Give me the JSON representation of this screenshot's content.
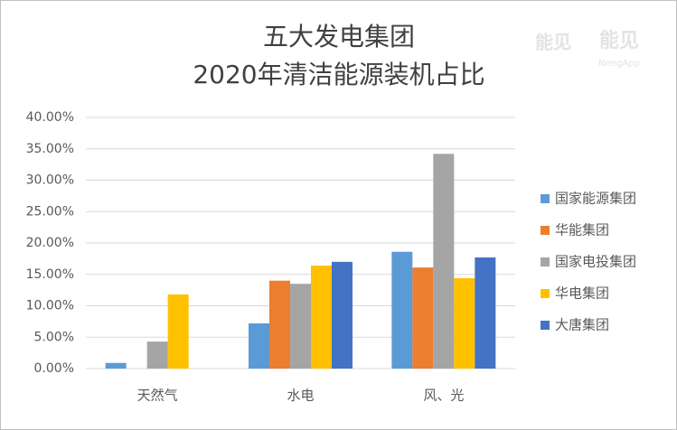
{
  "chart_data": {
    "type": "bar",
    "title": [
      "五大发电集团",
      "2020年清洁能源装机占比"
    ],
    "watermark": [
      "能见",
      "NengApp"
    ],
    "categories": [
      "天然气",
      "水电",
      "风、光"
    ],
    "series": [
      {
        "name": "国家能源集团",
        "color": "#5b9bd5",
        "values": [
          0.9,
          7.2,
          18.6
        ]
      },
      {
        "name": "华能集团",
        "color": "#ed7d31",
        "values": [
          null,
          14.0,
          16.1
        ]
      },
      {
        "name": "国家电投集团",
        "color": "#a5a5a5",
        "values": [
          4.3,
          13.5,
          34.2
        ]
      },
      {
        "name": "华电集团",
        "color": "#ffc000",
        "values": [
          11.8,
          16.4,
          14.4
        ]
      },
      {
        "name": "大唐集团",
        "color": "#4472c4",
        "values": [
          null,
          17.0,
          17.7
        ]
      }
    ],
    "ylim": [
      0,
      40
    ],
    "yticks": [
      {
        "value": 0,
        "label": "0.00%"
      },
      {
        "value": 5,
        "label": "5.00%"
      },
      {
        "value": 10,
        "label": "10.00%"
      },
      {
        "value": 15,
        "label": "15.00%"
      },
      {
        "value": 20,
        "label": "20.00%"
      },
      {
        "value": 25,
        "label": "25.00%"
      },
      {
        "value": 30,
        "label": "30.00%"
      },
      {
        "value": 35,
        "label": "35.00%"
      },
      {
        "value": 40,
        "label": "40.00%"
      }
    ],
    "grid": true,
    "legend": "right"
  }
}
